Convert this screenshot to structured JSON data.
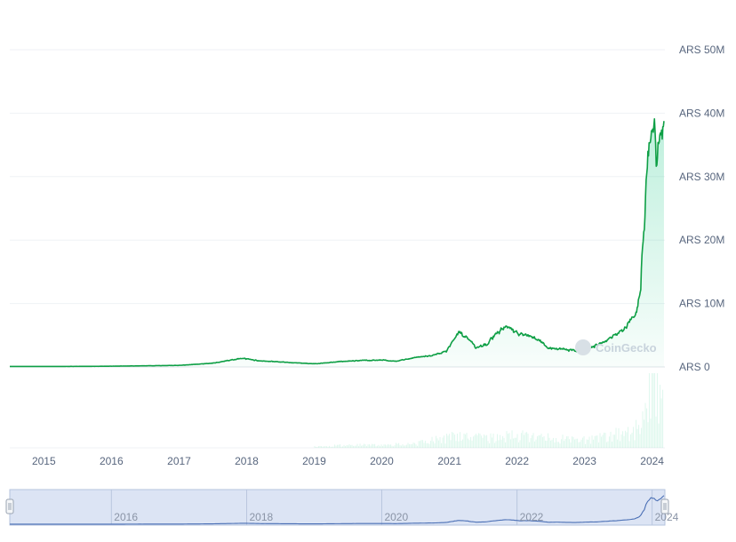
{
  "chart_data": {
    "type": "area",
    "title": "",
    "xlabel": "",
    "ylabel": "",
    "currency": "ARS",
    "ylim": [
      0,
      50000000
    ],
    "xlim": [
      "2014-07-01",
      "2024-03-10"
    ],
    "y_ticks": [
      {
        "value": 0,
        "label": "ARS 0"
      },
      {
        "value": 10000000,
        "label": "ARS 10M"
      },
      {
        "value": 20000000,
        "label": "ARS 20M"
      },
      {
        "value": 30000000,
        "label": "ARS 30M"
      },
      {
        "value": 40000000,
        "label": "ARS 40M"
      },
      {
        "value": 50000000,
        "label": "ARS 50M"
      }
    ],
    "x_ticks": [
      {
        "date": "2015-01-01",
        "label": "2015"
      },
      {
        "date": "2016-01-01",
        "label": "2016"
      },
      {
        "date": "2017-01-01",
        "label": "2017"
      },
      {
        "date": "2018-01-01",
        "label": "2018"
      },
      {
        "date": "2019-01-01",
        "label": "2019"
      },
      {
        "date": "2020-01-01",
        "label": "2020"
      },
      {
        "date": "2021-01-01",
        "label": "2021"
      },
      {
        "date": "2022-01-01",
        "label": "2022"
      },
      {
        "date": "2023-01-01",
        "label": "2023"
      },
      {
        "date": "2024-01-01",
        "label": "2024"
      }
    ],
    "grid": true,
    "watermark": "CoinGecko",
    "series": [
      {
        "color": "#16c784",
        "line_color": "#0e9f45",
        "x": [
          "2014-07-01",
          "2015-01-01",
          "2015-07-01",
          "2016-01-01",
          "2016-07-01",
          "2017-01-01",
          "2017-07-01",
          "2017-12-15",
          "2018-03-01",
          "2018-07-01",
          "2019-01-01",
          "2019-06-15",
          "2019-09-01",
          "2020-01-01",
          "2020-03-15",
          "2020-07-01",
          "2020-10-01",
          "2020-12-15",
          "2021-01-15",
          "2021-02-20",
          "2021-04-10",
          "2021-05-25",
          "2021-07-20",
          "2021-09-01",
          "2021-11-10",
          "2022-01-15",
          "2022-03-01",
          "2022-05-15",
          "2022-06-20",
          "2022-08-15",
          "2022-10-01",
          "2022-11-15",
          "2023-01-15",
          "2023-03-15",
          "2023-05-15",
          "2023-07-15",
          "2023-08-20",
          "2023-10-01",
          "2023-10-20",
          "2023-11-01",
          "2023-11-05",
          "2023-11-20",
          "2023-12-01",
          "2023-12-10",
          "2023-12-20",
          "2024-01-01",
          "2024-01-15",
          "2024-01-25",
          "2024-02-05",
          "2024-02-20",
          "2024-03-05"
        ],
        "values": [
          80000,
          80000,
          90000,
          120000,
          180000,
          250000,
          600000,
          1400000,
          1000000,
          800000,
          500000,
          900000,
          1000000,
          1100000,
          900000,
          1500000,
          1800000,
          2500000,
          4000000,
          5500000,
          4500000,
          3000000,
          3500000,
          5000000,
          6500000,
          5000000,
          5200000,
          4000000,
          2800000,
          3000000,
          2700000,
          2500000,
          3000000,
          3500000,
          4500000,
          5500000,
          6500000,
          8000000,
          10000000,
          12000000,
          16000000,
          21000000,
          31000000,
          34000000,
          36000000,
          38000000,
          37000000,
          32000000,
          35000000,
          37000000,
          40000000
        ]
      }
    ],
    "volume": {
      "x": [
        "2019-01-01",
        "2019-07-01",
        "2020-01-01",
        "2020-07-01",
        "2021-01-01",
        "2021-07-01",
        "2022-01-01",
        "2022-07-01",
        "2023-01-01",
        "2023-07-01",
        "2023-10-01",
        "2023-12-01",
        "2024-01-15",
        "2024-03-05"
      ],
      "values": [
        1,
        2,
        2,
        3,
        8,
        7,
        9,
        7,
        6,
        10,
        12,
        35,
        45,
        30
      ]
    },
    "navigator": {
      "ticks": [
        {
          "date": "2016-01-01",
          "label": "2016"
        },
        {
          "date": "2018-01-01",
          "label": "2018"
        },
        {
          "date": "2020-01-01",
          "label": "2020"
        },
        {
          "date": "2022-01-01",
          "label": "2022"
        },
        {
          "date": "2024-01-01",
          "label": "2024"
        }
      ]
    }
  }
}
